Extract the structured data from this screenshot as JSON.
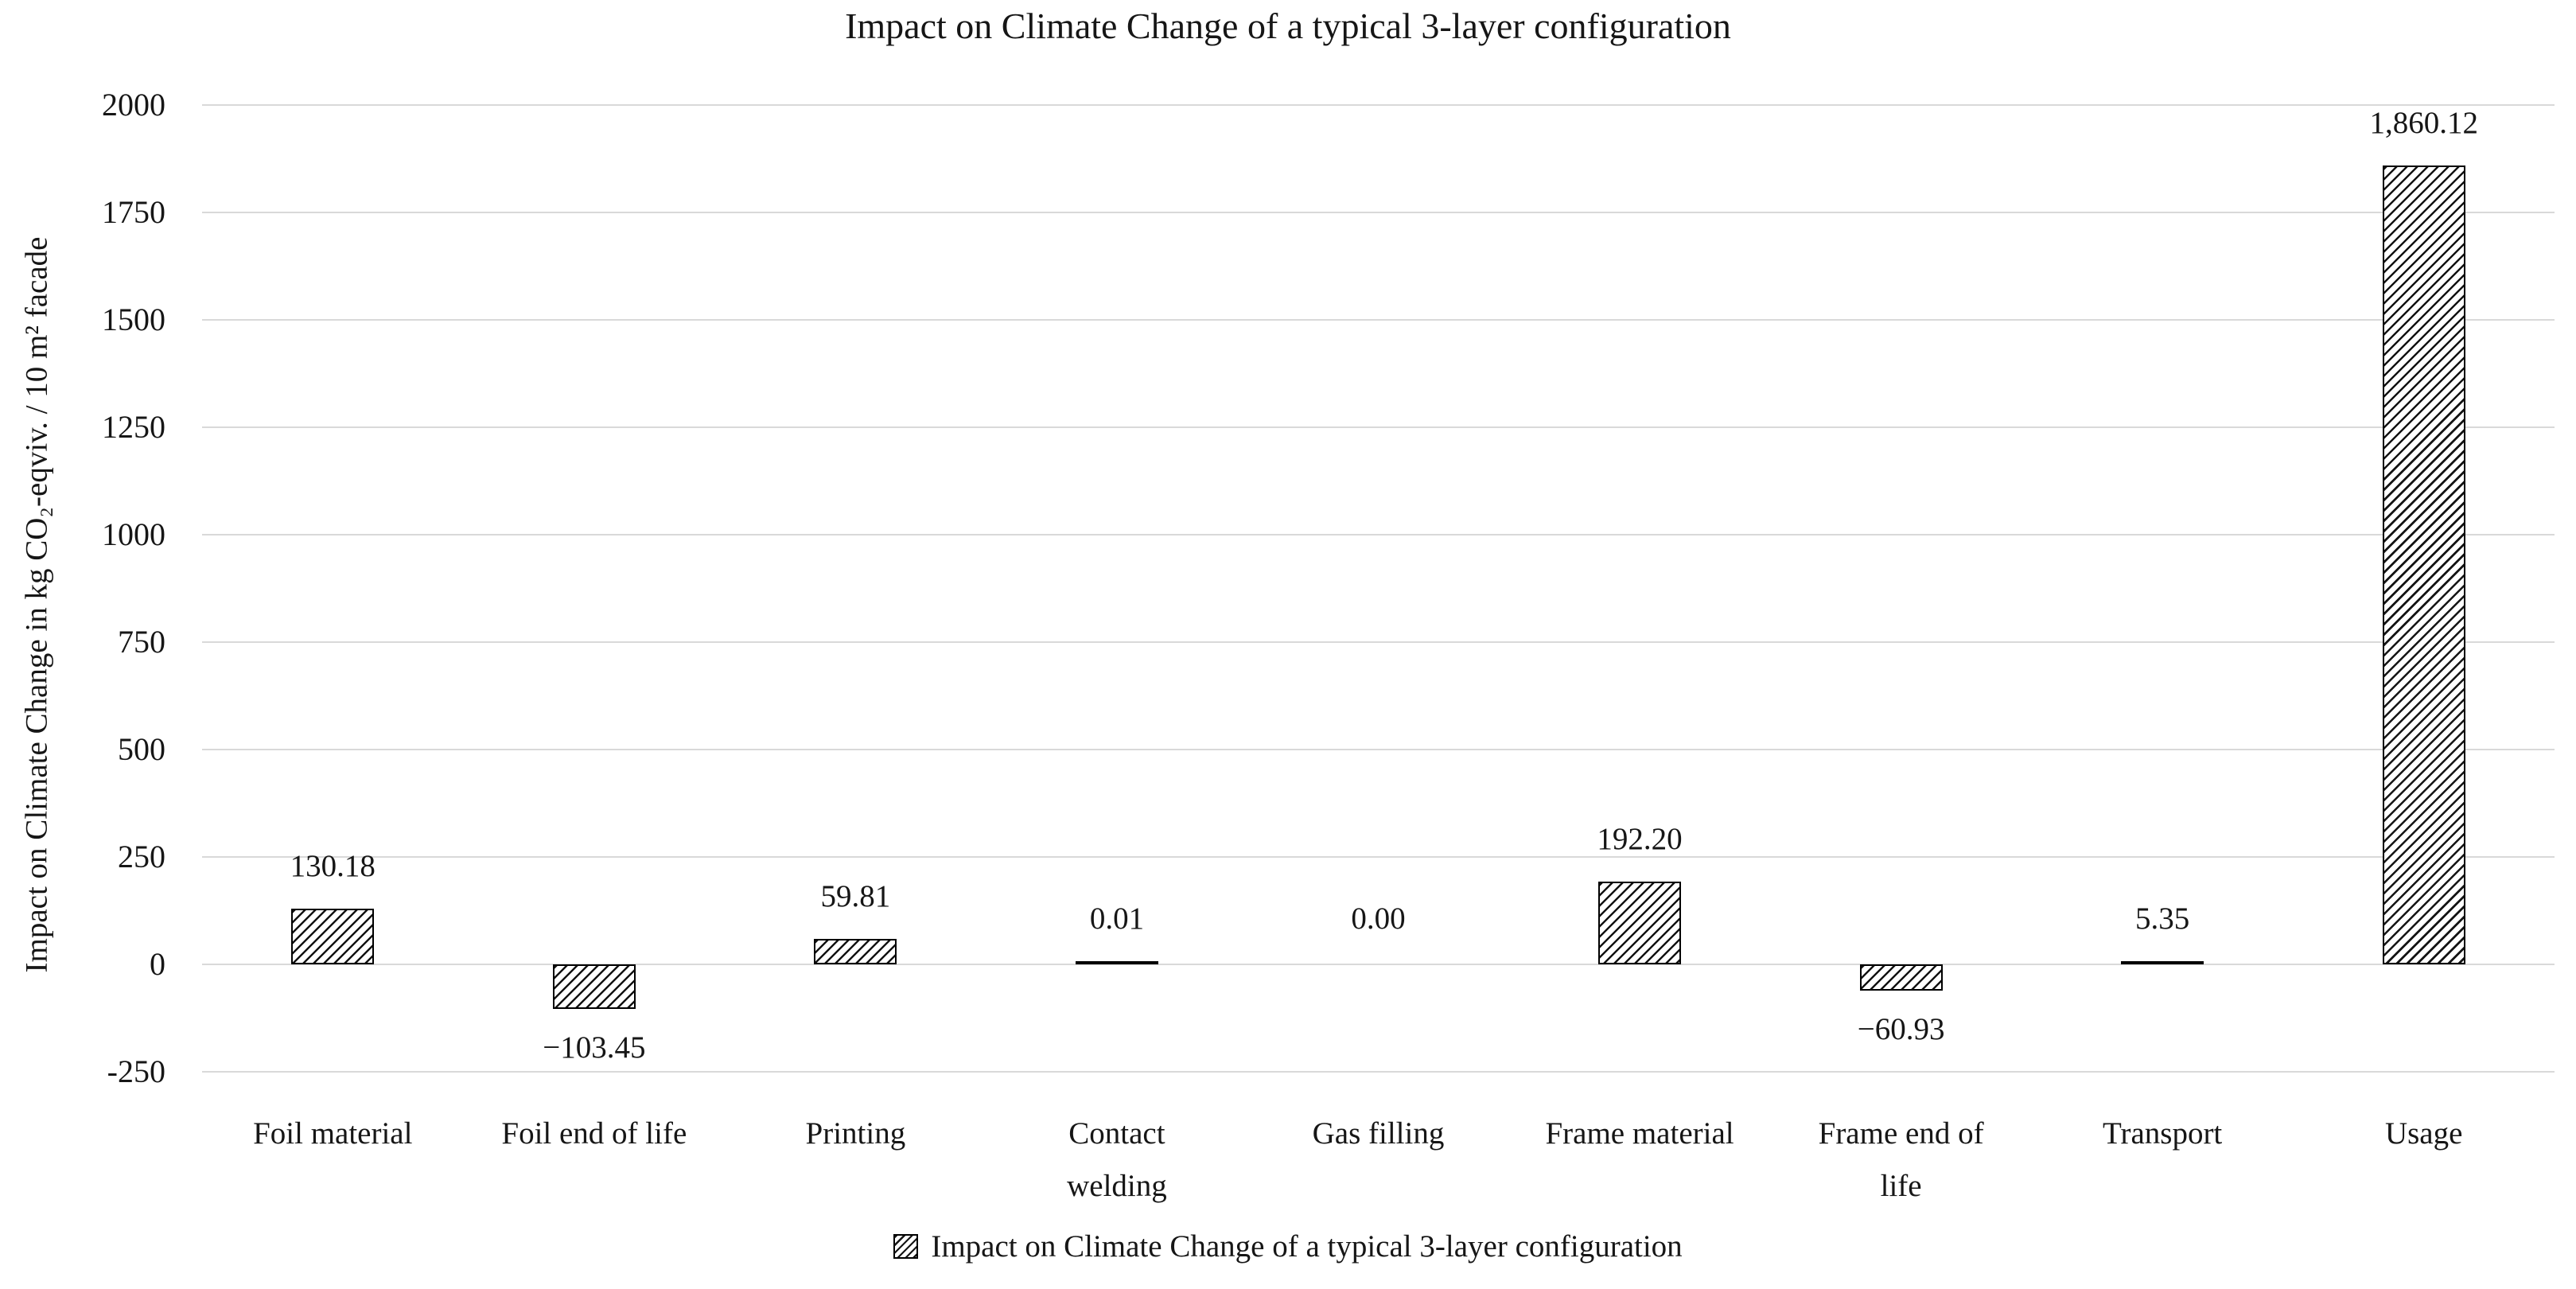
{
  "title": "Impact on Climate Change of a typical 3-layer configuration",
  "chart_data": {
    "type": "bar",
    "title": "Impact on Climate Change of a typical 3-layer configuration",
    "xlabel": "",
    "ylabel": "Impact on Climate Change in kg CO₂-eqviv. / 10 m² facade",
    "categories": [
      "Foil material",
      "Foil end of life",
      "Printing",
      "Contact\nwelding",
      "Gas filling",
      "Frame material",
      "Frame end of\nlife",
      "Transport",
      "Usage"
    ],
    "values": [
      130.18,
      -103.45,
      59.81,
      0.01,
      0.0,
      192.2,
      -60.93,
      5.35,
      1860.12
    ],
    "value_labels": [
      "130.18",
      "−103.45",
      "59.81",
      "0.01",
      "0.00",
      "192.20",
      "−60.93",
      "5.35",
      "1,860.12"
    ],
    "ylim": [
      -250,
      2000
    ],
    "ytick_step": 250,
    "ytick_labels": [
      "2000",
      "1750",
      "1500",
      "1250",
      "1000",
      "750",
      "500",
      "250",
      "0",
      "-250"
    ],
    "grid": "horizontal-only",
    "legend": {
      "position": "bottom-center",
      "entries": [
        {
          "swatch_icon": "diagonal-hatch-swatch",
          "label": "Impact on Climate Change of a typical 3-layer configuration"
        }
      ]
    },
    "bar_style": "white fill with black diagonal hatch (/), black outline",
    "colors": {
      "background": "#ffffff",
      "text": "#161616",
      "gridline": "#d9d9d9",
      "bar_fill": "#ffffff",
      "bar_hatch": "#141414",
      "bar_border": "#000000"
    }
  }
}
